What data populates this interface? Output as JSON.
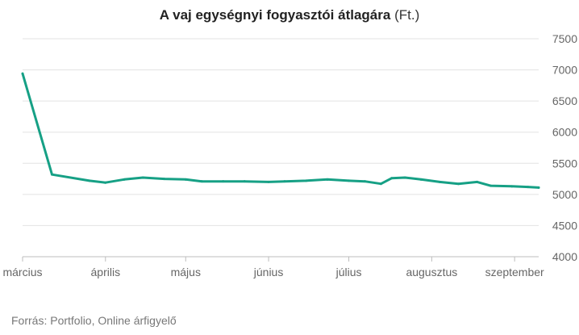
{
  "chart_data": {
    "type": "line",
    "title": "A vaj egységnyi fogyasztói átlagára",
    "title_unit": "(Ft.)",
    "xlabel": "",
    "ylabel": "",
    "ylim": [
      4000,
      7500
    ],
    "y_ticks": [
      4000,
      4500,
      5000,
      5500,
      6000,
      6500,
      7000,
      7500
    ],
    "y_axis_position": "right",
    "grid": true,
    "x_ticks": [
      {
        "label": "március",
        "x": 0
      },
      {
        "label": "április",
        "x": 31
      },
      {
        "label": "május",
        "x": 61
      },
      {
        "label": "június",
        "x": 92
      },
      {
        "label": "július",
        "x": 122
      },
      {
        "label": "augusztus",
        "x": 153
      },
      {
        "label": "szeptember",
        "x": 184
      }
    ],
    "x_range": [
      0,
      193
    ],
    "color": "#16a085",
    "series": [
      {
        "name": "",
        "x": [
          0,
          11,
          25,
          31,
          38,
          45,
          53,
          61,
          67,
          75,
          83,
          92,
          98,
          106,
          114,
          122,
          128,
          134,
          138,
          143,
          149,
          156,
          163,
          170,
          175,
          183,
          189,
          193
        ],
        "values": [
          6940,
          5320,
          5220,
          5190,
          5240,
          5270,
          5250,
          5240,
          5210,
          5210,
          5210,
          5200,
          5210,
          5220,
          5240,
          5220,
          5210,
          5170,
          5260,
          5270,
          5240,
          5200,
          5170,
          5200,
          5140,
          5130,
          5120,
          5110
        ]
      }
    ]
  },
  "source_text": "Forrás: Portfolio, Online árfigyelő"
}
